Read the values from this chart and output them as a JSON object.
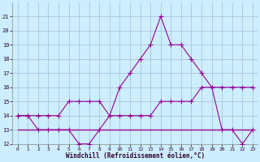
{
  "hours": [
    0,
    1,
    2,
    3,
    4,
    5,
    6,
    7,
    8,
    9,
    10,
    11,
    12,
    13,
    14,
    15,
    16,
    17,
    18,
    19,
    20,
    21,
    22,
    23
  ],
  "temp_line": [
    14,
    14,
    13,
    13,
    13,
    13,
    12,
    12,
    13,
    14,
    16,
    17,
    18,
    19,
    21,
    19,
    19,
    18,
    17,
    16,
    13,
    13,
    12,
    13
  ],
  "wind_line": [
    14,
    14,
    14,
    14,
    14,
    15,
    15,
    15,
    15,
    14,
    14,
    14,
    14,
    14,
    15,
    15,
    15,
    15,
    16,
    16,
    16,
    16,
    16,
    16
  ],
  "flat_line": [
    13,
    13,
    13,
    13,
    13,
    13,
    13,
    13,
    13,
    13,
    13,
    13,
    13,
    13,
    13,
    13,
    13,
    13,
    13,
    13,
    13,
    13,
    13,
    13
  ],
  "line_color": "#990099",
  "bg_color": "#cceeff",
  "grid_color": "#aabbcc",
  "ylim": [
    12,
    22
  ],
  "yticks": [
    12,
    13,
    14,
    15,
    16,
    17,
    18,
    19,
    20,
    21
  ],
  "xtick_labels": [
    "0",
    "1",
    "2",
    "3",
    "4",
    "5",
    "6",
    "7",
    "8",
    "9",
    "10",
    "11",
    "12",
    "13",
    "14",
    "15",
    "16",
    "17",
    "18",
    "19",
    "20",
    "21",
    "22",
    "23"
  ],
  "xlabel": "Windchill (Refroidissement éolien,°C)"
}
